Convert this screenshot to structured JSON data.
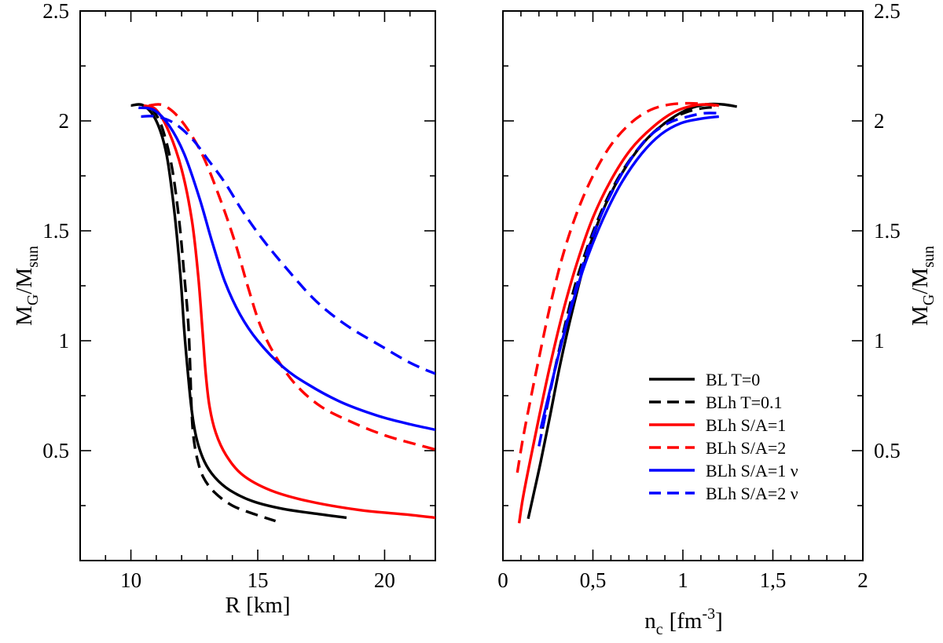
{
  "chart_data": [
    {
      "type": "line",
      "panel": "left",
      "xlabel": "R [km]",
      "ylabel_main": "M",
      "ylabel_sub1": "G",
      "ylabel_mid": "/M",
      "ylabel_sub2": "sun",
      "xlim": [
        8,
        22
      ],
      "ylim": [
        0,
        2.5
      ],
      "x_ticks": [
        10,
        15,
        20
      ],
      "x_tick_labels": [
        "10",
        "15",
        "20"
      ],
      "y_ticks": [
        0.5,
        1,
        1.5,
        2,
        2.5
      ],
      "y_tick_labels": [
        "0.5",
        "1",
        "1.5",
        "2",
        "2.5"
      ],
      "series": [
        {
          "name": "BL T=0",
          "color": "#000000",
          "dash": "solid",
          "points": [
            [
              10.0,
              2.07
            ],
            [
              10.5,
              2.07
            ],
            [
              11.0,
              2.0
            ],
            [
              11.4,
              1.85
            ],
            [
              11.7,
              1.6
            ],
            [
              11.95,
              1.3
            ],
            [
              12.1,
              1.05
            ],
            [
              12.25,
              0.85
            ],
            [
              12.4,
              0.68
            ],
            [
              12.6,
              0.55
            ],
            [
              12.9,
              0.45
            ],
            [
              13.3,
              0.38
            ],
            [
              13.9,
              0.32
            ],
            [
              14.8,
              0.27
            ],
            [
              16.0,
              0.235
            ],
            [
              17.5,
              0.21
            ],
            [
              18.5,
              0.195
            ]
          ]
        },
        {
          "name": "BLh T=0.1",
          "color": "#000000",
          "dash": "dashed",
          "points": [
            [
              10.8,
              2.06
            ],
            [
              11.2,
              1.98
            ],
            [
              11.6,
              1.8
            ],
            [
              11.9,
              1.55
            ],
            [
              12.1,
              1.3
            ],
            [
              12.25,
              1.1
            ],
            [
              12.33,
              0.9
            ],
            [
              12.38,
              0.72
            ],
            [
              12.45,
              0.58
            ],
            [
              12.6,
              0.47
            ],
            [
              12.85,
              0.38
            ],
            [
              13.3,
              0.31
            ],
            [
              14.0,
              0.25
            ],
            [
              14.9,
              0.21
            ],
            [
              15.7,
              0.18
            ]
          ]
        },
        {
          "name": "BLh S/A=1",
          "color": "#ff0000",
          "dash": "solid",
          "points": [
            [
              10.5,
              2.07
            ],
            [
              11.0,
              2.05
            ],
            [
              11.5,
              1.95
            ],
            [
              12.0,
              1.78
            ],
            [
              12.4,
              1.55
            ],
            [
              12.65,
              1.3
            ],
            [
              12.82,
              1.05
            ],
            [
              12.95,
              0.85
            ],
            [
              13.1,
              0.7
            ],
            [
              13.35,
              0.58
            ],
            [
              13.75,
              0.48
            ],
            [
              14.4,
              0.39
            ],
            [
              15.5,
              0.32
            ],
            [
              17.0,
              0.27
            ],
            [
              19.0,
              0.23
            ],
            [
              20.8,
              0.21
            ],
            [
              22.0,
              0.195
            ]
          ]
        },
        {
          "name": "BLh S/A=2",
          "color": "#ff0000",
          "dash": "dashed",
          "points": [
            [
              10.7,
              2.07
            ],
            [
              11.3,
              2.07
            ],
            [
              12.0,
              2.0
            ],
            [
              12.8,
              1.85
            ],
            [
              13.5,
              1.65
            ],
            [
              14.1,
              1.45
            ],
            [
              14.6,
              1.25
            ],
            [
              15.1,
              1.07
            ],
            [
              15.7,
              0.93
            ],
            [
              16.5,
              0.8
            ],
            [
              17.5,
              0.7
            ],
            [
              18.7,
              0.63
            ],
            [
              20.0,
              0.57
            ],
            [
              21.2,
              0.53
            ],
            [
              22.0,
              0.505
            ]
          ]
        },
        {
          "name": "BLh S/A=1 ν",
          "color": "#0000ff",
          "dash": "solid",
          "points": [
            [
              10.3,
              2.06
            ],
            [
              10.9,
              2.05
            ],
            [
              11.5,
              1.98
            ],
            [
              12.1,
              1.85
            ],
            [
              12.7,
              1.65
            ],
            [
              13.2,
              1.45
            ],
            [
              13.7,
              1.27
            ],
            [
              14.3,
              1.12
            ],
            [
              15.0,
              1.0
            ],
            [
              16.0,
              0.88
            ],
            [
              17.0,
              0.8
            ],
            [
              18.3,
              0.72
            ],
            [
              19.7,
              0.66
            ],
            [
              21.0,
              0.62
            ],
            [
              22.0,
              0.595
            ]
          ]
        },
        {
          "name": "BLh S/A=2 ν",
          "color": "#0000ff",
          "dash": "dashed",
          "points": [
            [
              10.4,
              2.02
            ],
            [
              11.0,
              2.02
            ],
            [
              11.7,
              1.99
            ],
            [
              12.4,
              1.92
            ],
            [
              13.0,
              1.83
            ],
            [
              13.7,
              1.72
            ],
            [
              14.4,
              1.59
            ],
            [
              15.2,
              1.46
            ],
            [
              16.2,
              1.32
            ],
            [
              17.3,
              1.18
            ],
            [
              18.5,
              1.07
            ],
            [
              19.8,
              0.98
            ],
            [
              21.0,
              0.9
            ],
            [
              22.0,
              0.85
            ]
          ]
        }
      ]
    },
    {
      "type": "line",
      "panel": "right",
      "xlabel_main": "n",
      "xlabel_sub": "c",
      "xlabel_unit": "[fm",
      "xlabel_sup": "-3",
      "xlabel_close": "]",
      "ylabel_main": "M",
      "ylabel_sub1": "G",
      "ylabel_mid": "/M",
      "ylabel_sub2": "sun",
      "xlim": [
        0,
        2
      ],
      "ylim": [
        0,
        2.5
      ],
      "x_ticks": [
        0,
        0.5,
        1,
        1.5,
        2
      ],
      "x_tick_labels": [
        "0",
        "0,5",
        "1",
        "1,5",
        "2"
      ],
      "y_ticks": [
        0.5,
        1,
        1.5,
        2,
        2.5
      ],
      "y_tick_labels": [
        "0.5",
        "1",
        "1.5",
        "2",
        "2.5"
      ],
      "legend_position": "bottom-right",
      "legend_entries": [
        {
          "label": "BL T=0",
          "color": "#000000",
          "dash": "solid"
        },
        {
          "label": "BLh T=0.1",
          "color": "#000000",
          "dash": "dashed"
        },
        {
          "label": "BLh S/A=1",
          "color": "#ff0000",
          "dash": "solid"
        },
        {
          "label": "BLh S/A=2",
          "color": "#ff0000",
          "dash": "dashed"
        },
        {
          "label": "BLh S/A=1 ν",
          "color": "#0000ff",
          "dash": "solid"
        },
        {
          "label": "BLh S/A=2 ν",
          "color": "#0000ff",
          "dash": "dashed"
        }
      ],
      "series": [
        {
          "name": "BL T=0",
          "color": "#000000",
          "dash": "solid",
          "points": [
            [
              0.14,
              0.19
            ],
            [
              0.17,
              0.3
            ],
            [
              0.21,
              0.45
            ],
            [
              0.26,
              0.65
            ],
            [
              0.32,
              0.9
            ],
            [
              0.39,
              1.15
            ],
            [
              0.47,
              1.4
            ],
            [
              0.56,
              1.6
            ],
            [
              0.66,
              1.76
            ],
            [
              0.78,
              1.9
            ],
            [
              0.9,
              1.99
            ],
            [
              1.02,
              2.05
            ],
            [
              1.13,
              2.075
            ],
            [
              1.22,
              2.075
            ],
            [
              1.3,
              2.065
            ]
          ]
        },
        {
          "name": "BLh T=0.1",
          "color": "#000000",
          "dash": "dashed",
          "points": [
            [
              0.22,
              0.6
            ],
            [
              0.27,
              0.8
            ],
            [
              0.33,
              1.02
            ],
            [
              0.4,
              1.25
            ],
            [
              0.48,
              1.45
            ],
            [
              0.57,
              1.63
            ],
            [
              0.67,
              1.78
            ],
            [
              0.78,
              1.9
            ],
            [
              0.9,
              1.99
            ],
            [
              1.02,
              2.04
            ],
            [
              1.13,
              2.06
            ],
            [
              1.2,
              2.06
            ]
          ]
        },
        {
          "name": "BLh S/A=1",
          "color": "#ff0000",
          "dash": "solid",
          "points": [
            [
              0.09,
              0.17
            ],
            [
              0.11,
              0.28
            ],
            [
              0.15,
              0.45
            ],
            [
              0.2,
              0.65
            ],
            [
              0.26,
              0.88
            ],
            [
              0.33,
              1.12
            ],
            [
              0.41,
              1.35
            ],
            [
              0.5,
              1.56
            ],
            [
              0.6,
              1.73
            ],
            [
              0.71,
              1.87
            ],
            [
              0.83,
              1.97
            ],
            [
              0.95,
              2.04
            ],
            [
              1.06,
              2.07
            ],
            [
              1.14,
              2.075
            ],
            [
              1.2,
              2.07
            ]
          ]
        },
        {
          "name": "BLh S/A=2",
          "color": "#ff0000",
          "dash": "dashed",
          "points": [
            [
              0.08,
              0.4
            ],
            [
              0.11,
              0.55
            ],
            [
              0.15,
              0.72
            ],
            [
              0.2,
              0.92
            ],
            [
              0.26,
              1.15
            ],
            [
              0.33,
              1.38
            ],
            [
              0.41,
              1.58
            ],
            [
              0.5,
              1.75
            ],
            [
              0.6,
              1.89
            ],
            [
              0.71,
              1.99
            ],
            [
              0.82,
              2.05
            ],
            [
              0.93,
              2.075
            ],
            [
              1.04,
              2.08
            ],
            [
              1.13,
              2.075
            ],
            [
              1.18,
              2.07
            ]
          ]
        },
        {
          "name": "BLh S/A=1 ν",
          "color": "#0000ff",
          "dash": "solid",
          "points": [
            [
              0.21,
              0.6
            ],
            [
              0.26,
              0.77
            ],
            [
              0.32,
              0.97
            ],
            [
              0.39,
              1.18
            ],
            [
              0.47,
              1.38
            ],
            [
              0.56,
              1.56
            ],
            [
              0.66,
              1.72
            ],
            [
              0.77,
              1.85
            ],
            [
              0.88,
              1.94
            ],
            [
              0.99,
              1.99
            ],
            [
              1.1,
              2.01
            ],
            [
              1.2,
              2.02
            ]
          ]
        },
        {
          "name": "BLh S/A=2 ν",
          "color": "#0000ff",
          "dash": "dashed",
          "points": [
            [
              0.2,
              0.52
            ],
            [
              0.24,
              0.68
            ],
            [
              0.29,
              0.87
            ],
            [
              0.35,
              1.07
            ],
            [
              0.42,
              1.28
            ],
            [
              0.5,
              1.48
            ],
            [
              0.59,
              1.65
            ],
            [
              0.69,
              1.8
            ],
            [
              0.8,
              1.92
            ],
            [
              0.92,
              1.99
            ],
            [
              1.03,
              2.02
            ],
            [
              1.12,
              2.035
            ],
            [
              1.2,
              2.035
            ]
          ]
        }
      ]
    }
  ]
}
